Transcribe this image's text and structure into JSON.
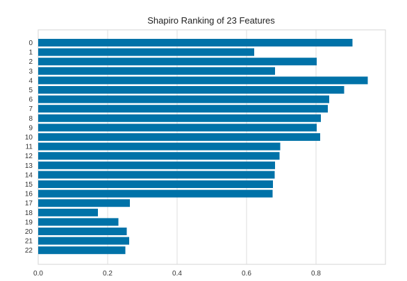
{
  "chart_data": {
    "type": "bar",
    "orientation": "horizontal",
    "title": "Shapiro Ranking of 23 Features",
    "xlabel": "",
    "ylabel": "",
    "xlim": [
      0,
      1.0
    ],
    "x_ticks": [
      "0.0",
      "0.2",
      "0.4",
      "0.6",
      "0.8"
    ],
    "x_tick_values": [
      0.0,
      0.2,
      0.4,
      0.6,
      0.8
    ],
    "grid": true,
    "bar_color": "#0072a8",
    "categories": [
      "0",
      "1",
      "2",
      "3",
      "4",
      "5",
      "6",
      "7",
      "8",
      "9",
      "10",
      "11",
      "12",
      "13",
      "14",
      "15",
      "16",
      "17",
      "18",
      "19",
      "20",
      "21",
      "22"
    ],
    "values": [
      0.905,
      0.622,
      0.802,
      0.682,
      0.949,
      0.881,
      0.838,
      0.834,
      0.814,
      0.802,
      0.812,
      0.697,
      0.695,
      0.682,
      0.681,
      0.676,
      0.675,
      0.264,
      0.172,
      0.231,
      0.255,
      0.262,
      0.251
    ]
  }
}
